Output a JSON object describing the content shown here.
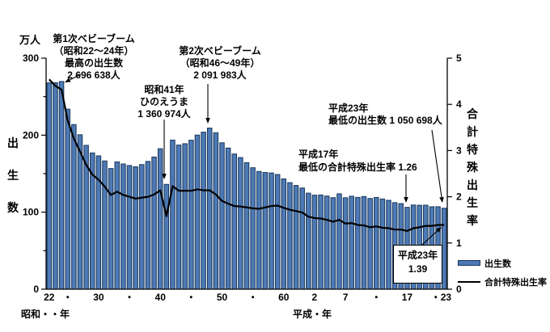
{
  "chart_data": {
    "type": "combo",
    "title": "",
    "x_axis_note": "years Showa 22 (1947) to Heisei 23 (2011), one bar per year",
    "left_axis": {
      "unit": "万人",
      "title": "出生数",
      "min": 0,
      "max": 300,
      "major_ticks": [
        300,
        200,
        100,
        0
      ],
      "minor_ticks": [
        250,
        150,
        50
      ]
    },
    "right_axis": {
      "title": "合計特殊出生率",
      "min": 0,
      "max": 5,
      "ticks": [
        5,
        4,
        3,
        2,
        1,
        0
      ]
    },
    "x_ticks": [
      {
        "pos": 0,
        "label": "22"
      },
      {
        "pos": 3,
        "label": "・"
      },
      {
        "pos": 8,
        "label": "30"
      },
      {
        "pos": 13,
        "label": "・"
      },
      {
        "pos": 18,
        "label": "40"
      },
      {
        "pos": 23,
        "label": "・"
      },
      {
        "pos": 28,
        "label": "50"
      },
      {
        "pos": 33,
        "label": "・"
      },
      {
        "pos": 38,
        "label": "60"
      },
      {
        "pos": 43,
        "label": "2"
      },
      {
        "pos": 48,
        "label": "7"
      },
      {
        "pos": 53,
        "label": "・"
      },
      {
        "pos": 58,
        "label": "17"
      },
      {
        "pos": 63.5,
        "label": "・23"
      }
    ],
    "x_era_labels": [
      "昭和・・年",
      "平成・年"
    ],
    "grid": false,
    "legend_position": "bottom-right",
    "series": [
      {
        "name": "出生数",
        "type": "bar",
        "color": "#4d79b4",
        "border_color": "#17365c",
        "values": [
          267.9,
          268.2,
          269.7,
          233.8,
          213.8,
          200.5,
          186.8,
          176.9,
          173.1,
          166.5,
          156.7,
          165.3,
          162.6,
          160.6,
          158.9,
          161.8,
          165.9,
          171.6,
          182.4,
          136.1,
          193.6,
          187.2,
          188.9,
          193.4,
          200.1,
          203.9,
          209.2,
          203.0,
          190.1,
          183.3,
          175.5,
          170.9,
          164.3,
          157.7,
          152.9,
          151.5,
          150.9,
          148.9,
          143.2,
          138.3,
          134.7,
          131.4,
          124.7,
          122.1,
          122.3,
          120.9,
          118.8,
          123.8,
          118.7,
          120.7,
          119.2,
          120.3,
          117.8,
          119.1,
          117.1,
          115.4,
          112.4,
          111.1,
          106.3,
          109.3,
          109.0,
          109.1,
          107.0,
          107.1,
          105.1
        ]
      },
      {
        "name": "合計特殊出生率",
        "type": "line",
        "color": "#000000",
        "values": [
          4.54,
          4.4,
          4.32,
          3.65,
          3.26,
          2.98,
          2.69,
          2.48,
          2.37,
          2.22,
          2.04,
          2.11,
          2.04,
          2.0,
          1.96,
          1.98,
          2.0,
          2.05,
          2.14,
          1.58,
          2.23,
          2.13,
          2.13,
          2.13,
          2.16,
          2.14,
          2.14,
          2.05,
          1.91,
          1.85,
          1.8,
          1.79,
          1.77,
          1.75,
          1.74,
          1.77,
          1.8,
          1.81,
          1.76,
          1.72,
          1.69,
          1.66,
          1.57,
          1.54,
          1.53,
          1.5,
          1.46,
          1.5,
          1.42,
          1.43,
          1.39,
          1.38,
          1.34,
          1.36,
          1.33,
          1.32,
          1.29,
          1.29,
          1.26,
          1.32,
          1.34,
          1.37,
          1.37,
          1.39,
          1.39
        ]
      }
    ]
  },
  "annotations": {
    "unit_left": "万人",
    "babyboom1": {
      "text": "第1次ベビーブーム\n（昭和22～24年）\n最高の出生数\n2 696 638人"
    },
    "hinoeuma": {
      "text": "昭和41年\nひのえうま\n1 360 974人"
    },
    "babyboom2": {
      "text": "第2次ベビーブーム\n（昭和46～49年）\n2 091 983人"
    },
    "heisei17": {
      "text": "平成17年\n最低の合計特殊出生率 1.26"
    },
    "heisei23_births": {
      "text": "平成23年\n最低の出生数 1 050 698人"
    },
    "box_tfr": {
      "text": "平成23年\n1.39"
    }
  },
  "colors": {
    "background": "#ffffff",
    "axis": "#000000",
    "text": "#000000",
    "bar_fill": "#4d79b4",
    "bar_border": "#17365c",
    "line": "#000000"
  }
}
